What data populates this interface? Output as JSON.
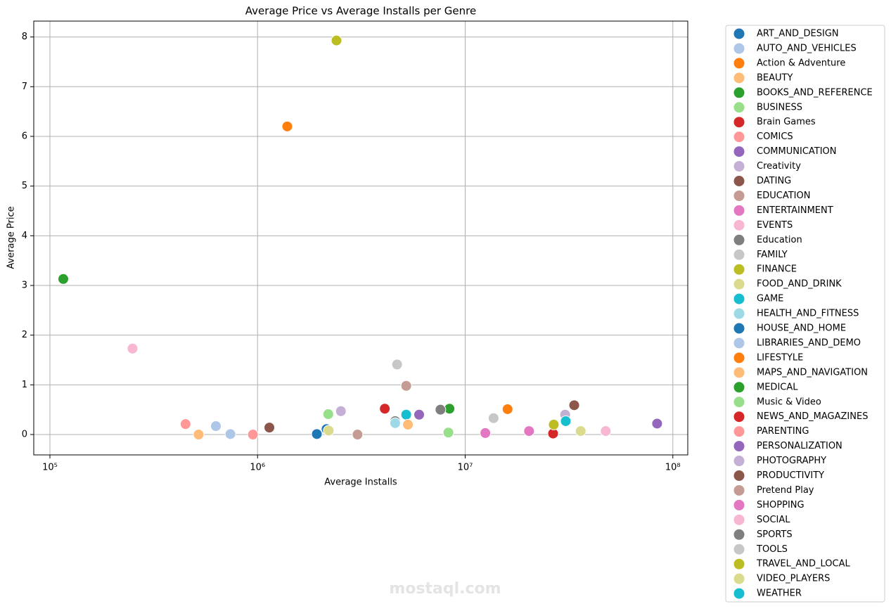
{
  "chart_data": {
    "type": "scatter",
    "title": "Average Price vs Average Installs per Genre",
    "x_label": "Average Installs",
    "y_label": "Average Price",
    "xscale": "log",
    "grid": true,
    "legend": "outside right",
    "xlim": [
      83600,
      118000000
    ],
    "ylim": [
      -0.41,
      8.32
    ],
    "xticks": [
      {
        "value": 100000,
        "label": "10⁵"
      },
      {
        "value": 1000000,
        "label": "10⁶"
      },
      {
        "value": 10000000,
        "label": "10⁷"
      },
      {
        "value": 100000000,
        "label": "10⁸"
      }
    ],
    "yticks": [
      0,
      1,
      2,
      3,
      4,
      5,
      6,
      7,
      8
    ],
    "series": [
      {
        "name": "ART_AND_DESIGN",
        "color": "#1f77b4",
        "x": [
          2150000
        ],
        "values": [
          0.11
        ]
      },
      {
        "name": "AUTO_AND_VEHICLES",
        "color": "#aec7e8",
        "x": [
          630000
        ],
        "values": [
          0.17
        ]
      },
      {
        "name": "Action & Adventure",
        "color": "#ff7f0e",
        "x": [
          1390000
        ],
        "values": [
          6.2
        ]
      },
      {
        "name": "BEAUTY",
        "color": "#ffbb78",
        "x": [
          520000
        ],
        "values": [
          0.0
        ]
      },
      {
        "name": "BOOKS_AND_REFERENCE",
        "color": "#2ca02c",
        "x": [
          116000
        ],
        "values": [
          3.13
        ]
      },
      {
        "name": "BUSINESS",
        "color": "#98df8a",
        "x": [
          8300000
        ],
        "values": [
          0.04
        ]
      },
      {
        "name": "Brain Games",
        "color": "#d62728",
        "x": [
          26500000
        ],
        "values": [
          0.02
        ]
      },
      {
        "name": "COMICS",
        "color": "#ff9896",
        "x": [
          950000
        ],
        "values": [
          0.0
        ]
      },
      {
        "name": "COMMUNICATION",
        "color": "#9467bd",
        "x": [
          84000000
        ],
        "values": [
          0.22
        ]
      },
      {
        "name": "Creativity",
        "color": "#c5b0d5",
        "x": [
          2520000
        ],
        "values": [
          0.47
        ]
      },
      {
        "name": "DATING",
        "color": "#8c564b",
        "x": [
          1140000
        ],
        "values": [
          0.14
        ]
      },
      {
        "name": "EDUCATION",
        "color": "#c49c94",
        "x": [
          3030000
        ],
        "values": [
          0.0
        ]
      },
      {
        "name": "ENTERTAINMENT",
        "color": "#e377c2",
        "x": [
          12500000
        ],
        "values": [
          0.03
        ]
      },
      {
        "name": "EVENTS",
        "color": "#f7b6d2",
        "x": [
          250000
        ],
        "values": [
          1.73
        ]
      },
      {
        "name": "Education",
        "color": "#7f7f7f",
        "x": [
          4600000
        ],
        "values": [
          0.27
        ]
      },
      {
        "name": "FAMILY",
        "color": "#c7c7c7",
        "x": [
          4700000
        ],
        "values": [
          1.41
        ]
      },
      {
        "name": "FINANCE",
        "color": "#bcbd22",
        "x": [
          2400000
        ],
        "values": [
          7.93
        ]
      },
      {
        "name": "FOOD_AND_DRINK",
        "color": "#dbdb8d",
        "x": [
          2200000
        ],
        "values": [
          0.08
        ]
      },
      {
        "name": "GAME",
        "color": "#17becf",
        "x": [
          5200000
        ],
        "values": [
          0.4
        ]
      },
      {
        "name": "HEALTH_AND_FITNESS",
        "color": "#9edae5",
        "x": [
          4600000
        ],
        "values": [
          0.23
        ]
      },
      {
        "name": "HOUSE_AND_HOME",
        "color": "#1f77b4",
        "x": [
          1930000
        ],
        "values": [
          0.01
        ]
      },
      {
        "name": "LIBRARIES_AND_DEMO",
        "color": "#aec7e8",
        "x": [
          740000
        ],
        "values": [
          0.01
        ]
      },
      {
        "name": "LIFESTYLE",
        "color": "#ff7f0e",
        "x": [
          16000000
        ],
        "values": [
          0.51
        ]
      },
      {
        "name": "MAPS_AND_NAVIGATION",
        "color": "#ffbb78",
        "x": [
          5300000
        ],
        "values": [
          0.2
        ]
      },
      {
        "name": "MEDICAL",
        "color": "#2ca02c",
        "x": [
          8400000
        ],
        "values": [
          0.52
        ]
      },
      {
        "name": "Music & Video",
        "color": "#98df8a",
        "x": [
          2190000
        ],
        "values": [
          0.41
        ]
      },
      {
        "name": "NEWS_AND_MAGAZINES",
        "color": "#d62728",
        "x": [
          4100000
        ],
        "values": [
          0.52
        ]
      },
      {
        "name": "PARENTING",
        "color": "#ff9896",
        "x": [
          450000
        ],
        "values": [
          0.21
        ]
      },
      {
        "name": "PERSONALIZATION",
        "color": "#9467bd",
        "x": [
          6000000
        ],
        "values": [
          0.4
        ]
      },
      {
        "name": "PHOTOGRAPHY",
        "color": "#c5b0d5",
        "x": [
          30300000
        ],
        "values": [
          0.4
        ]
      },
      {
        "name": "PRODUCTIVITY",
        "color": "#8c564b",
        "x": [
          33500000
        ],
        "values": [
          0.59
        ]
      },
      {
        "name": "Pretend Play",
        "color": "#c49c94",
        "x": [
          5200000
        ],
        "values": [
          0.98
        ]
      },
      {
        "name": "SHOPPING",
        "color": "#e377c2",
        "x": [
          20300000
        ],
        "values": [
          0.07
        ]
      },
      {
        "name": "SOCIAL",
        "color": "#f7b6d2",
        "x": [
          47500000
        ],
        "values": [
          0.07
        ]
      },
      {
        "name": "SPORTS",
        "color": "#7f7f7f",
        "x": [
          7600000
        ],
        "values": [
          0.5
        ]
      },
      {
        "name": "TOOLS",
        "color": "#c7c7c7",
        "x": [
          13700000
        ],
        "values": [
          0.33
        ]
      },
      {
        "name": "TRAVEL_AND_LOCAL",
        "color": "#bcbd22",
        "x": [
          26700000
        ],
        "values": [
          0.2
        ]
      },
      {
        "name": "VIDEO_PLAYERS",
        "color": "#dbdb8d",
        "x": [
          36000000
        ],
        "values": [
          0.07
        ]
      },
      {
        "name": "WEATHER",
        "color": "#17becf",
        "x": [
          30500000
        ],
        "values": [
          0.27
        ]
      }
    ]
  },
  "watermark": "mostaql.com"
}
